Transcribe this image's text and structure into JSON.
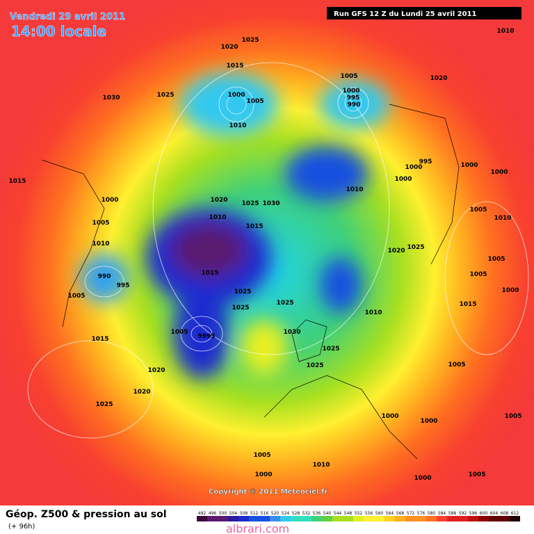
{
  "header": {
    "date": "Vendredi 29 avril 2011",
    "time": "14:00 locale",
    "run": "Run GFS 12 Z du Lundi 25 avril 2011"
  },
  "copyright": "Copyright © 2011 Meteociel.fr",
  "footer": {
    "title": "Géop. Z500 & pression au sol",
    "lead": "(+ 96h)",
    "watermark": "albrari.com"
  },
  "legend": {
    "levels": [
      492,
      496,
      500,
      504,
      508,
      512,
      516,
      520,
      524,
      528,
      532,
      536,
      540,
      544,
      548,
      552,
      556,
      560,
      564,
      568,
      572,
      576,
      580,
      584,
      588,
      592,
      596,
      600,
      604,
      608,
      612
    ]
  },
  "isobars": [
    "1025",
    "1020",
    "1010",
    "1015",
    "1030",
    "1025",
    "1000",
    "1005",
    "1010",
    "1005",
    "1000",
    "995",
    "990",
    "1020",
    "995",
    "1000",
    "1000",
    "1000",
    "1000",
    "1015",
    "1010",
    "1020",
    "1025",
    "1030",
    "1000",
    "1005",
    "1010",
    "1015",
    "1005",
    "1010",
    "1010",
    "1020",
    "1025",
    "1005",
    "990",
    "995",
    "1015",
    "1005",
    "1000",
    "1005",
    "1025",
    "1025",
    "1025",
    "1015",
    "1010",
    "1005",
    "1030",
    "9995",
    "1015",
    "1025",
    "1025",
    "1005",
    "1020",
    "1020",
    "1025",
    "1000",
    "1000",
    "1005",
    "1005",
    "1010",
    "1000",
    "1000",
    "1005"
  ]
}
